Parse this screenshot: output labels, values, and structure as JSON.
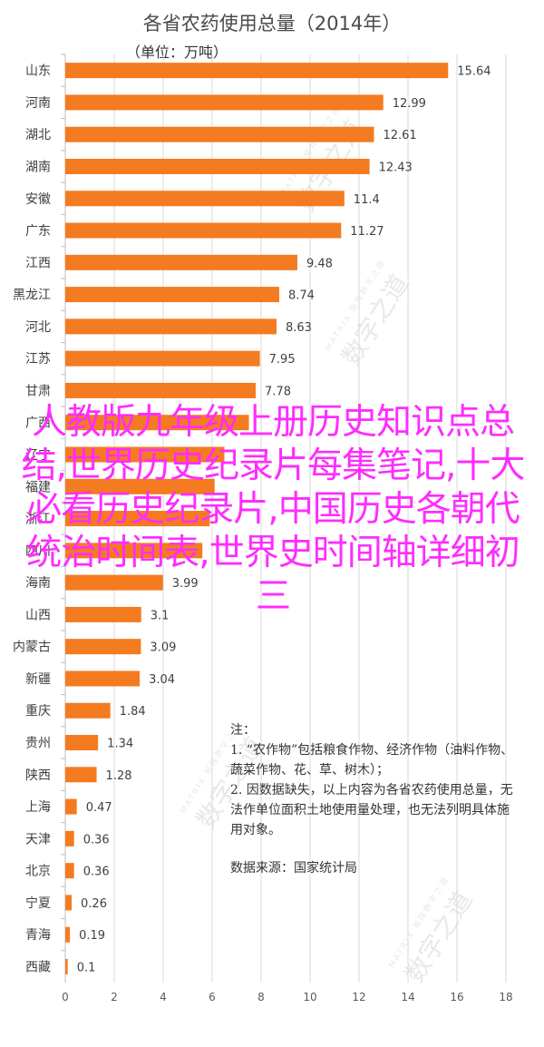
{
  "chart_data": {
    "type": "bar",
    "orientation": "horizontal",
    "title": "各省农药使用总量（2014年）",
    "subtitle": "（单位：万吨）",
    "categories": [
      "山东",
      "河南",
      "湖北",
      "湖南",
      "安徽",
      "广东",
      "江西",
      "黑龙江",
      "河北",
      "江苏",
      "甘肃",
      "广西",
      "辽宁",
      "福建",
      "浙江",
      "四川",
      "海南",
      "山西",
      "内蒙古",
      "新疆",
      "重庆",
      "贵州",
      "陕西",
      "上海",
      "天津",
      "北京",
      "宁夏",
      "青海",
      "西藏"
    ],
    "values": [
      15.64,
      12.99,
      12.61,
      12.43,
      11.4,
      11.27,
      9.48,
      8.74,
      8.63,
      7.95,
      7.78,
      7.5,
      6.5,
      6.1,
      5.9,
      5.6,
      3.99,
      3.1,
      3.09,
      3.04,
      1.84,
      1.34,
      1.28,
      0.47,
      0.36,
      0.36,
      0.26,
      0.19,
      0.1
    ],
    "value_labels": [
      "15.64",
      "12.99",
      "12.61",
      "12.43",
      "11.4",
      "11.27",
      "9.48",
      "8.74",
      "8.63",
      "7.95",
      "7.78",
      "",
      "",
      "",
      "",
      "",
      "3.99",
      "3.1",
      "3.09",
      "3.04",
      "1.84",
      "1.34",
      "1.28",
      "0.47",
      "0.36",
      "0.36",
      "0.26",
      "0.19",
      "0.1"
    ],
    "xlim": [
      0,
      18
    ],
    "xticks": [
      0,
      2,
      4,
      6,
      8,
      10,
      12,
      14,
      16,
      18
    ],
    "bar_color": "#f47b20",
    "grid": true
  },
  "note": {
    "heading": "注：",
    "item1": "1. “农作物”包括粮食作物、经济作物（油料作物、蔬菜作物、花、草、树木）；",
    "item2": "2. 因数据缺失，以上内容为各省农药使用总量，无法作单位面积土地使用量处理，也无法列明具体施用对象。",
    "source": "数据来源：国家统计局"
  },
  "overlay_text": "人教版九年级上册历史知识点总结,世界历史纪录片每集笔记,十大必看历史纪录片,中国历史各朝代统治时间表,世界史时间轴详细初三",
  "watermark": {
    "small": "MATRIX 矩阵数字之道",
    "big": "数字之道"
  }
}
